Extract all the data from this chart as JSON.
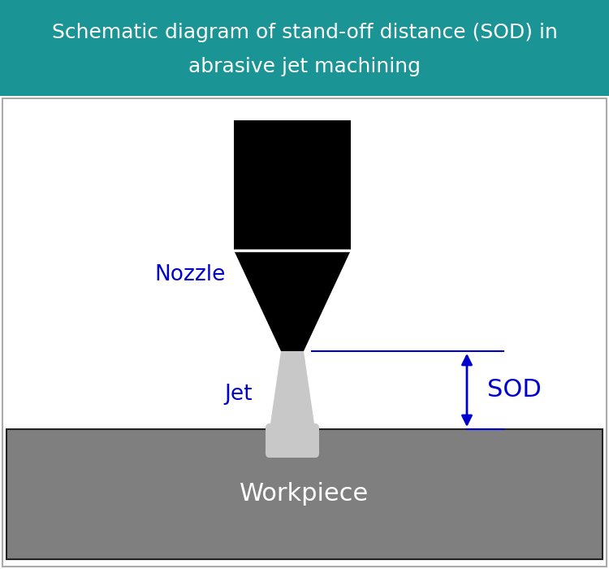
{
  "title_line1": "Schematic diagram of stand-off distance (SOD) in",
  "title_line2": "abrasive jet machining",
  "title_bg_color": "#1a9494",
  "title_text_color": "#ffffff",
  "bg_color": "#ffffff",
  "nozzle_color": "#000000",
  "nozzle_label": "Nozzle",
  "nozzle_label_color": "#0000cc",
  "nozzle_label_fontsize": 19,
  "jet_color": "#c8c8c8",
  "jet_label": "Jet",
  "jet_label_color": "#0000cc",
  "jet_label_fontsize": 19,
  "workpiece_color": "#7f7f7f",
  "workpiece_label": "Workpiece",
  "workpiece_label_color": "#ffffff",
  "workpiece_label_fontsize": 22,
  "sod_label": "SOD",
  "sod_label_color": "#0000cc",
  "sod_label_fontsize": 22,
  "arrow_color": "#0000cc",
  "line_color": "#0000cc",
  "border_color": "#aaaaaa"
}
